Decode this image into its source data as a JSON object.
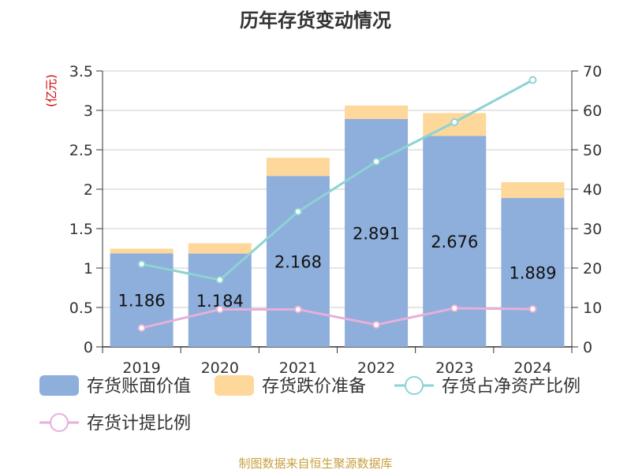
{
  "title": "历年存货变动情况",
  "source": "制图数据来自恒生聚源数据库",
  "chart_data": {
    "type": "bar",
    "stacked": true,
    "title": "历年存货变动情况",
    "categories": [
      "2019",
      "2020",
      "2021",
      "2022",
      "2023",
      "2024"
    ],
    "left_axis": {
      "unit_label": "(亿元)",
      "ylim": [
        0,
        3.5
      ],
      "ticks": [
        "0",
        "0.5",
        "1",
        "1.5",
        "2",
        "2.5",
        "3",
        "3.5"
      ]
    },
    "right_axis": {
      "ylim": [
        0,
        70
      ],
      "ticks": [
        "0",
        "10",
        "20",
        "30",
        "40",
        "50",
        "60",
        "70"
      ]
    },
    "grid": true,
    "legend_position": "bottom",
    "series": [
      {
        "name": "存货账面价值",
        "kind": "bar",
        "axis": "left",
        "color": "#8eaedb",
        "values": [
          1.186,
          1.184,
          2.168,
          2.891,
          2.676,
          1.889
        ],
        "labels": [
          "1.186",
          "1.184",
          "2.168",
          "2.891",
          "2.676",
          "1.889"
        ]
      },
      {
        "name": "存货跌价准备",
        "kind": "bar",
        "axis": "left",
        "color": "#fdd89a",
        "values": [
          0.06,
          0.13,
          0.23,
          0.17,
          0.29,
          0.2
        ]
      },
      {
        "name": "存货占净资产比例",
        "kind": "line",
        "axis": "right",
        "color": "#8dd3d3",
        "values": [
          21,
          17,
          34.3,
          47,
          57,
          67.7
        ]
      },
      {
        "name": "存货计提比例",
        "kind": "line",
        "axis": "right",
        "color": "#e6b0d8",
        "values": [
          4.8,
          9.5,
          9.5,
          5.6,
          9.8,
          9.6
        ]
      }
    ]
  }
}
